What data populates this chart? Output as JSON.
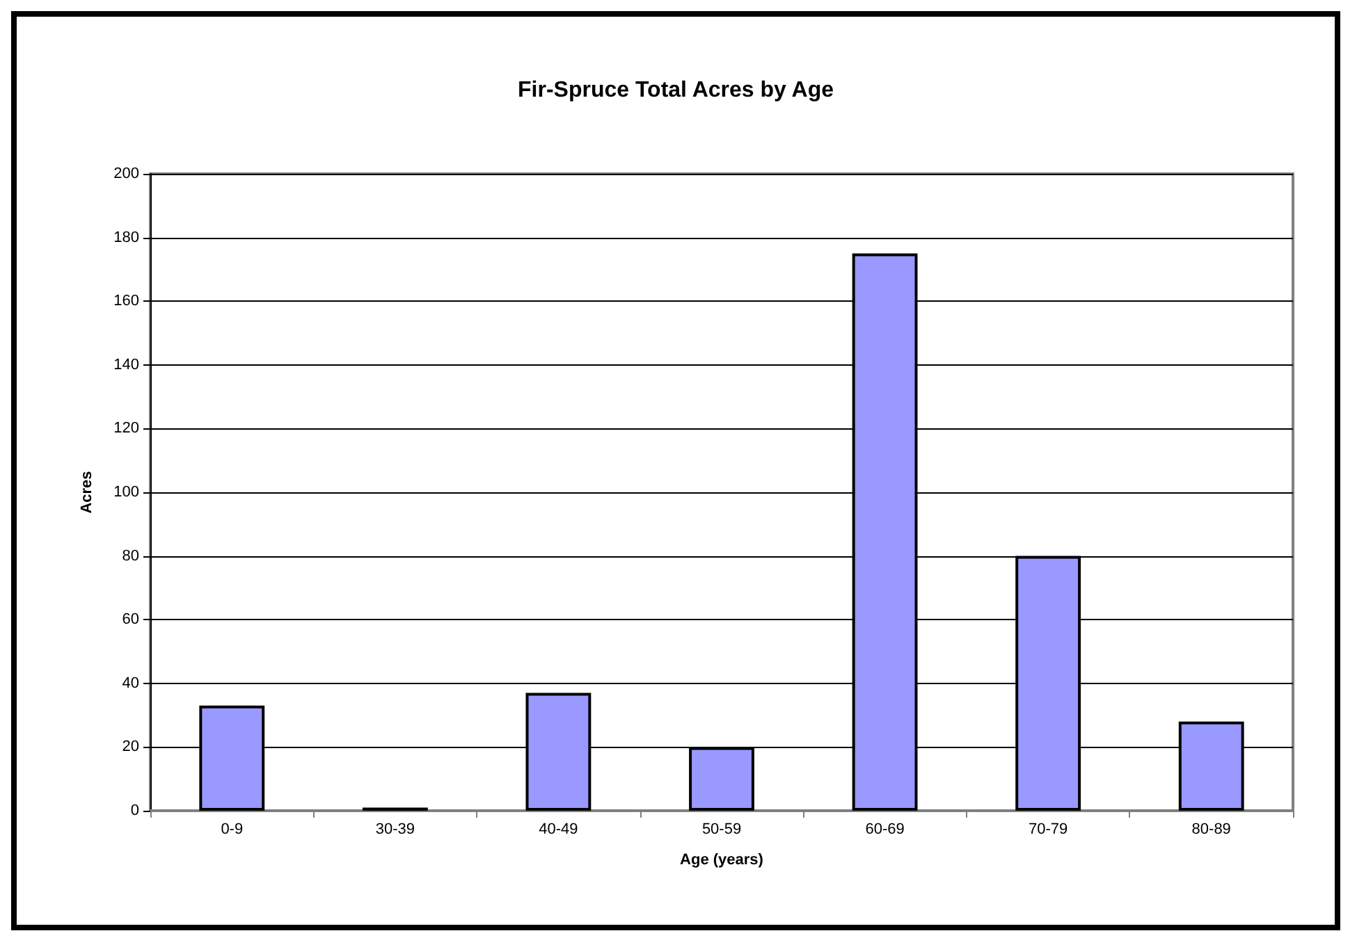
{
  "chart_data": {
    "type": "bar",
    "title": "Fir-Spruce Total Acres by Age",
    "xlabel": "Age (years)",
    "ylabel": "Acres",
    "categories": [
      "0-9",
      "30-39",
      "40-49",
      "50-59",
      "60-69",
      "70-79",
      "80-89"
    ],
    "values": [
      33,
      1,
      37,
      20,
      175,
      80,
      28
    ],
    "color": "#9999ff",
    "ylim": [
      0,
      200
    ],
    "yticks": [
      0,
      20,
      40,
      60,
      80,
      100,
      120,
      140,
      160,
      180,
      200
    ],
    "grid": "y"
  }
}
